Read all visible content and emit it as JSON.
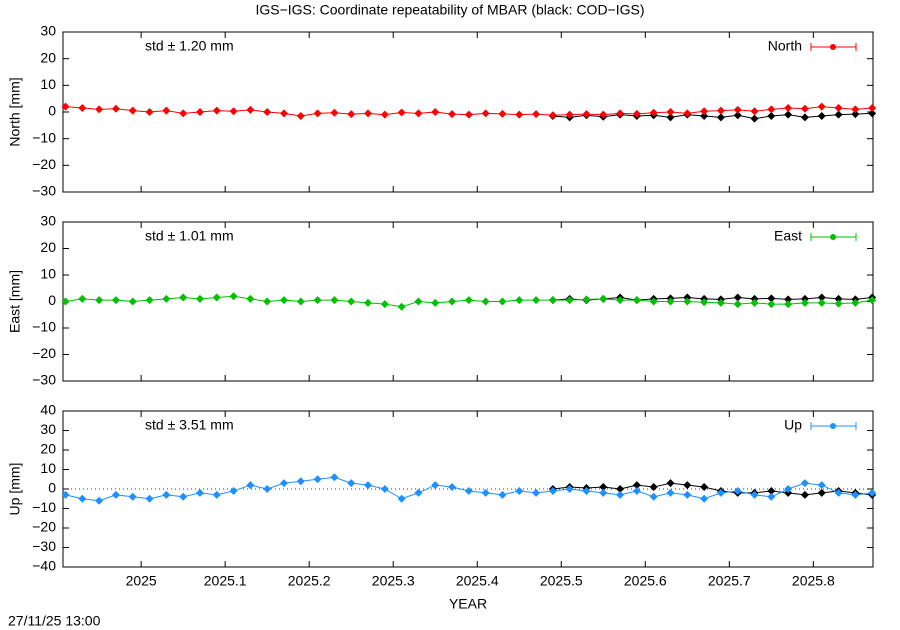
{
  "footer": "27/11/25 13:00",
  "chart_data": [
    {
      "type": "scatter",
      "title": "IGS−IGS: Coordinate repeatability of MBAR (black: COD−IGS)",
      "ylabel": "North [mm]",
      "annotation": "std ± 1.20 mm",
      "xlim": [
        2024.907,
        2025.871
      ],
      "ylim": [
        -30,
        30
      ],
      "yticks": [
        {
          "value": -30,
          "label": "−30"
        },
        {
          "value": -20,
          "label": "−20"
        },
        {
          "value": -10,
          "label": "−10"
        },
        0,
        10,
        20,
        30
      ],
      "series": [
        {
          "name": "North",
          "color": "#ff0000",
          "x": [
            2024.91,
            2024.93,
            2024.95,
            2024.97,
            2024.99,
            2025.01,
            2025.03,
            2025.05,
            2025.07,
            2025.09,
            2025.11,
            2025.13,
            2025.15,
            2025.17,
            2025.19,
            2025.21,
            2025.23,
            2025.25,
            2025.27,
            2025.29,
            2025.31,
            2025.33,
            2025.35,
            2025.37,
            2025.39,
            2025.41,
            2025.43,
            2025.45,
            2025.47,
            2025.49,
            2025.51,
            2025.53,
            2025.55,
            2025.57,
            2025.59,
            2025.61,
            2025.63,
            2025.65,
            2025.67,
            2025.69,
            2025.71,
            2025.73,
            2025.75,
            2025.77,
            2025.79,
            2025.81,
            2025.83,
            2025.85,
            2025.87
          ],
          "values": [
            2,
            1.5,
            1,
            1.2,
            0.5,
            0,
            0.5,
            -0.5,
            0,
            0.5,
            0.3,
            0.8,
            0,
            -0.5,
            -1.5,
            -0.5,
            -0.3,
            -0.8,
            -0.5,
            -1,
            -0.2,
            -0.5,
            0,
            -0.8,
            -1,
            -0.5,
            -0.7,
            -1,
            -0.8,
            -1.2,
            -1,
            -0.8,
            -1,
            -0.5,
            -0.7,
            -0.3,
            0,
            -0.5,
            0.3,
            0.5,
            0.8,
            0.3,
            1,
            1.5,
            1.2,
            2,
            1.5,
            1,
            1.5
          ]
        },
        {
          "color": "#000000",
          "x": [
            2025.49,
            2025.51,
            2025.53,
            2025.55,
            2025.57,
            2025.59,
            2025.61,
            2025.63,
            2025.65,
            2025.67,
            2025.69,
            2025.71,
            2025.73,
            2025.75,
            2025.77,
            2025.79,
            2025.81,
            2025.83,
            2025.85,
            2025.87
          ],
          "values": [
            -1.5,
            -2,
            -1.2,
            -1.8,
            -1,
            -1.5,
            -1.2,
            -2,
            -1,
            -1.5,
            -2,
            -1.2,
            -2.5,
            -1.5,
            -1,
            -2,
            -1.5,
            -1,
            -0.8,
            -0.5
          ]
        }
      ]
    },
    {
      "type": "scatter",
      "ylabel": "East [mm]",
      "annotation": "std ± 1.01 mm",
      "xlim": [
        2024.907,
        2025.871
      ],
      "ylim": [
        -30,
        30
      ],
      "yticks": [
        {
          "value": -30,
          "label": "−30"
        },
        {
          "value": -20,
          "label": "−20"
        },
        {
          "value": -10,
          "label": "−10"
        },
        0,
        10,
        20,
        30
      ],
      "series": [
        {
          "name": "East",
          "color": "#00c000",
          "x": [
            2024.91,
            2024.93,
            2024.95,
            2024.97,
            2024.99,
            2025.01,
            2025.03,
            2025.05,
            2025.07,
            2025.09,
            2025.11,
            2025.13,
            2025.15,
            2025.17,
            2025.19,
            2025.21,
            2025.23,
            2025.25,
            2025.27,
            2025.29,
            2025.31,
            2025.33,
            2025.35,
            2025.37,
            2025.39,
            2025.41,
            2025.43,
            2025.45,
            2025.47,
            2025.49,
            2025.51,
            2025.53,
            2025.55,
            2025.57,
            2025.59,
            2025.61,
            2025.63,
            2025.65,
            2025.67,
            2025.69,
            2025.71,
            2025.73,
            2025.75,
            2025.77,
            2025.79,
            2025.81,
            2025.83,
            2025.85,
            2025.87
          ],
          "values": [
            0,
            1,
            0.5,
            0.5,
            0,
            0.5,
            1,
            1.5,
            1,
            1.5,
            2,
            1,
            0,
            0.5,
            0,
            0.5,
            0.5,
            0,
            -0.5,
            -1,
            -2,
            0,
            -0.5,
            0,
            0.5,
            0,
            0,
            0.5,
            0.5,
            0.5,
            0.5,
            0.8,
            1,
            0.5,
            0.5,
            0,
            0,
            0,
            -0.3,
            -0.5,
            -1,
            -0.5,
            -1,
            -1,
            -0.5,
            -0.5,
            -0.8,
            -0.5,
            0.5
          ]
        },
        {
          "color": "#000000",
          "x": [
            2025.49,
            2025.51,
            2025.53,
            2025.55,
            2025.57,
            2025.59,
            2025.61,
            2025.63,
            2025.65,
            2025.67,
            2025.69,
            2025.71,
            2025.73,
            2025.75,
            2025.77,
            2025.79,
            2025.81,
            2025.83,
            2025.85,
            2025.87
          ],
          "values": [
            0.5,
            1,
            0.5,
            1,
            1.5,
            0.5,
            1,
            1.2,
            1.5,
            1,
            0.8,
            1.5,
            1,
            1.2,
            0.8,
            1,
            1.5,
            1,
            0.8,
            1.5
          ]
        }
      ]
    },
    {
      "type": "scatter",
      "ylabel": "Up [mm]",
      "annotation": "std ± 3.51 mm",
      "xlabel": "YEAR",
      "zeroline": true,
      "xlim": [
        2024.907,
        2025.871
      ],
      "ylim": [
        -40,
        40
      ],
      "xticks": [
        2025,
        2025.1,
        2025.2,
        2025.3,
        2025.4,
        2025.5,
        2025.6,
        2025.7,
        2025.8
      ],
      "yticks": [
        {
          "value": -40,
          "label": "−40"
        },
        {
          "value": -30,
          "label": "−30"
        },
        {
          "value": -20,
          "label": "−20"
        },
        {
          "value": -10,
          "label": "−10"
        },
        0,
        10,
        20,
        30,
        40
      ],
      "series": [
        {
          "name": "Up",
          "color": "#1e90ff",
          "x": [
            2024.91,
            2024.93,
            2024.95,
            2024.97,
            2024.99,
            2025.01,
            2025.03,
            2025.05,
            2025.07,
            2025.09,
            2025.11,
            2025.13,
            2025.15,
            2025.17,
            2025.19,
            2025.21,
            2025.23,
            2025.25,
            2025.27,
            2025.29,
            2025.31,
            2025.33,
            2025.35,
            2025.37,
            2025.39,
            2025.41,
            2025.43,
            2025.45,
            2025.47,
            2025.49,
            2025.51,
            2025.53,
            2025.55,
            2025.57,
            2025.59,
            2025.61,
            2025.63,
            2025.65,
            2025.67,
            2025.69,
            2025.71,
            2025.73,
            2025.75,
            2025.77,
            2025.79,
            2025.81,
            2025.83,
            2025.85,
            2025.87
          ],
          "values": [
            -3,
            -5,
            -6,
            -3,
            -4,
            -5,
            -3,
            -4,
            -2,
            -3,
            -1,
            2,
            0,
            3,
            4,
            5,
            6,
            3,
            2,
            0,
            -5,
            -2,
            2,
            1,
            -1,
            -2,
            -3,
            -1,
            -2,
            -1,
            0,
            -1,
            -2,
            -3,
            -1,
            -4,
            -2,
            -3,
            -5,
            -2,
            -1,
            -3,
            -4,
            0,
            3,
            2,
            -2,
            -3,
            -2
          ]
        },
        {
          "color": "#000000",
          "x": [
            2025.49,
            2025.51,
            2025.53,
            2025.55,
            2025.57,
            2025.59,
            2025.61,
            2025.63,
            2025.65,
            2025.67,
            2025.69,
            2025.71,
            2025.73,
            2025.75,
            2025.77,
            2025.79,
            2025.81,
            2025.83,
            2025.85,
            2025.87
          ],
          "values": [
            0,
            1,
            0.5,
            1,
            0,
            2,
            1,
            3,
            2,
            1,
            -1,
            -2,
            -2,
            -1,
            -2,
            -3,
            -2,
            -1,
            -2,
            -3
          ]
        }
      ]
    }
  ]
}
